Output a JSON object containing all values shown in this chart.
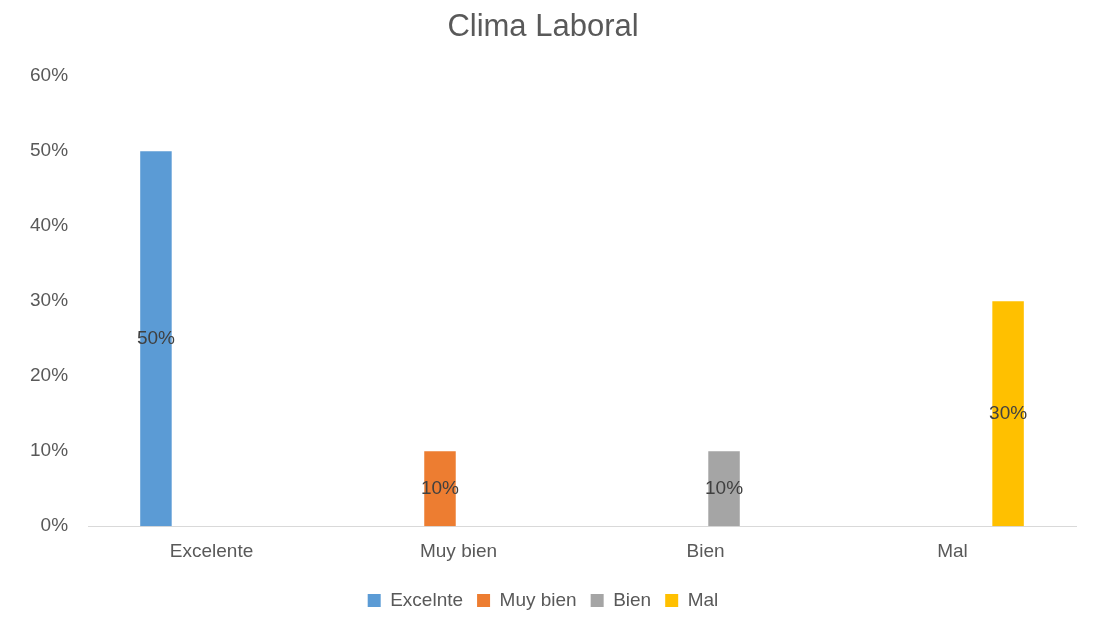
{
  "chart_data": {
    "type": "bar",
    "title": "Clima Laboral",
    "categories": [
      "Excelente",
      "Muy bien",
      "Bien",
      "Mal"
    ],
    "series": [
      {
        "name": "Excelnte",
        "color": "#5b9bd5",
        "values": [
          50,
          null,
          null,
          null
        ],
        "value_labels": [
          "50%",
          null,
          null,
          null
        ]
      },
      {
        "name": "Muy bien",
        "color": "#ed7d31",
        "values": [
          null,
          10,
          null,
          null
        ],
        "value_labels": [
          null,
          "10%",
          null,
          null
        ]
      },
      {
        "name": "Bien",
        "color": "#a5a5a5",
        "values": [
          null,
          null,
          10,
          null
        ],
        "value_labels": [
          null,
          null,
          "10%",
          null
        ]
      },
      {
        "name": "Mal",
        "color": "#ffc000",
        "values": [
          null,
          null,
          null,
          30
        ],
        "value_labels": [
          null,
          null,
          null,
          "30%"
        ]
      }
    ],
    "ylim": [
      0,
      60
    ],
    "yticks": [
      {
        "value": 0,
        "label": "0%"
      },
      {
        "value": 10,
        "label": "10%"
      },
      {
        "value": 20,
        "label": "20%"
      },
      {
        "value": 30,
        "label": "30%"
      },
      {
        "value": 40,
        "label": "40%"
      },
      {
        "value": 50,
        "label": "50%"
      },
      {
        "value": 60,
        "label": "60%"
      }
    ],
    "grid": false,
    "legend": "bottom"
  }
}
